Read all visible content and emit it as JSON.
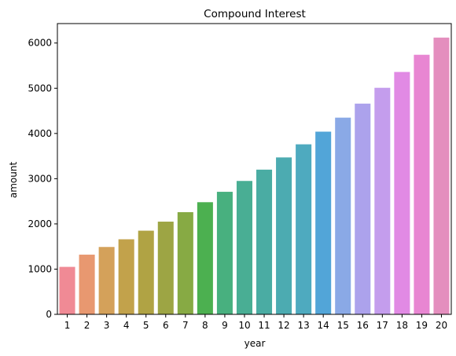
{
  "chart_data": {
    "type": "bar",
    "title": "Compound Interest",
    "xlabel": "year",
    "ylabel": "amount",
    "categories": [
      "1",
      "2",
      "3",
      "4",
      "5",
      "6",
      "7",
      "8",
      "9",
      "10",
      "11",
      "12",
      "13",
      "14",
      "15",
      "16",
      "17",
      "18",
      "19",
      "20"
    ],
    "values": [
      1050,
      1320,
      1490,
      1660,
      1850,
      2050,
      2260,
      2480,
      2710,
      2950,
      3200,
      3470,
      3760,
      4040,
      4350,
      4660,
      5010,
      5360,
      5740,
      6120
    ],
    "colors": [
      "#f08a95",
      "#e89870",
      "#d4a15a",
      "#c2a24b",
      "#b0a344",
      "#9da544",
      "#87aa44",
      "#4cb050",
      "#48b07f",
      "#49ae94",
      "#4aaca3",
      "#4cabb1",
      "#4eaabf",
      "#52a5d8",
      "#8aa9e6",
      "#aca2ec",
      "#c49ded",
      "#e18ae4",
      "#e886d2",
      "#e48ebe"
    ],
    "yticks": [
      0,
      1000,
      2000,
      3000,
      4000,
      5000,
      6000
    ],
    "ylim": [
      0,
      6430
    ],
    "grid": false,
    "legend": "none"
  }
}
